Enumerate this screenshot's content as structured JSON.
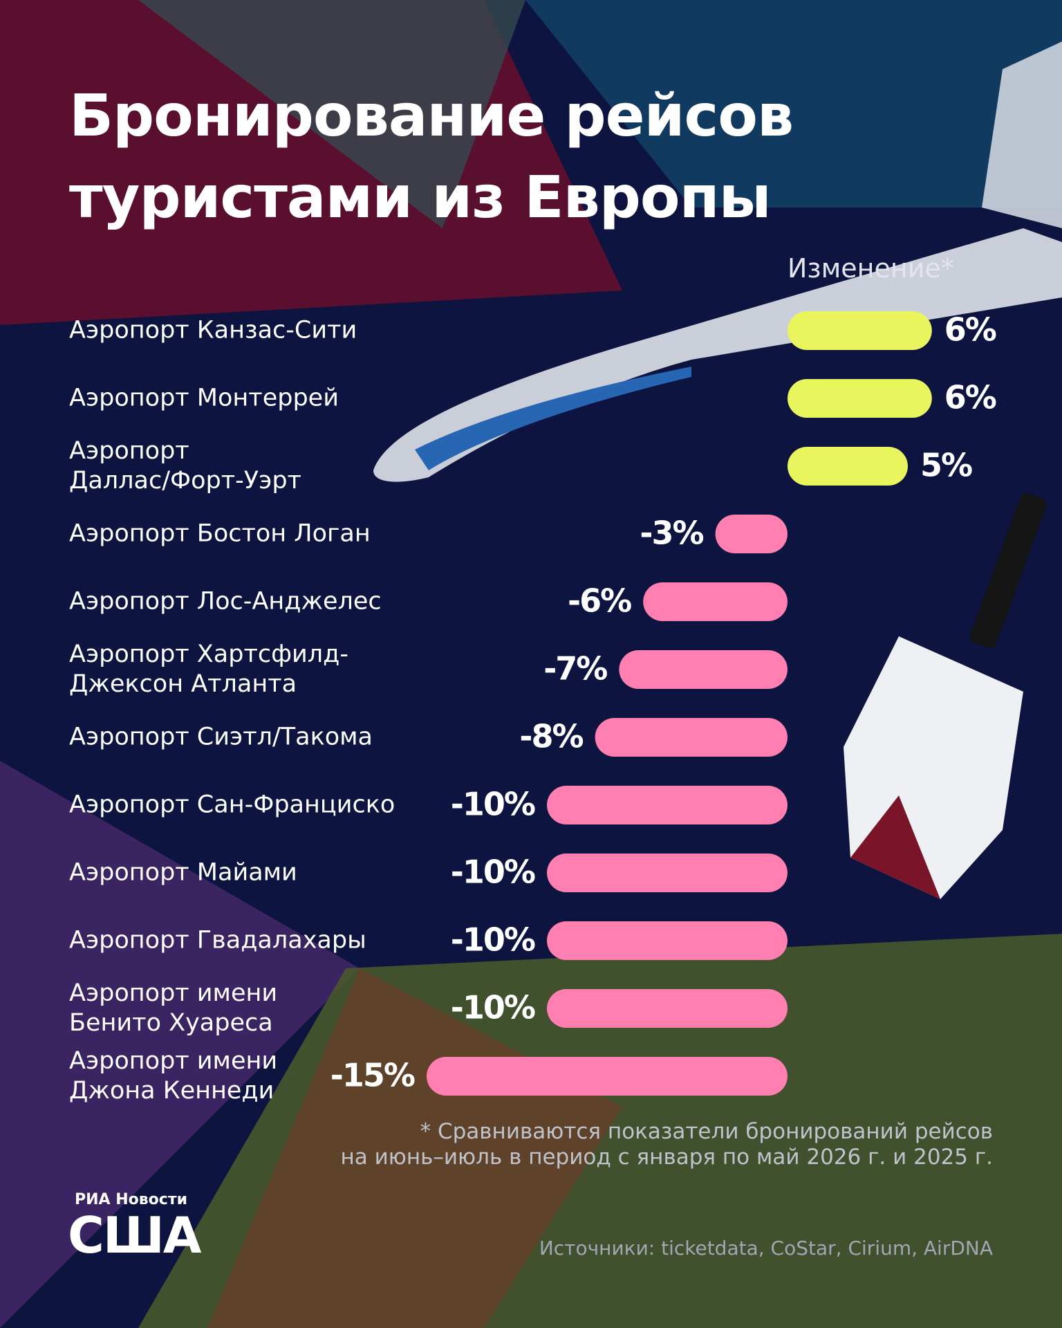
{
  "chart_data": {
    "type": "bar",
    "orientation": "horizontal",
    "title": "Бронирование рейсов\nтуристами из Европы",
    "value_axis_label": "Изменение*",
    "categories": [
      "Аэропорт Канзас-Сити",
      "Аэропорт Монтеррей",
      "Аэропорт\nДаллас/Форт-Уэрт",
      "Аэропорт Бостон Логан",
      "Аэропорт Лос-Анджелес",
      "Аэропорт Хартсфилд-\nДжексон Атланта",
      "Аэропорт Сиэтл/Такома",
      "Аэропорт Сан-Франциско",
      "Аэропорт Майами",
      "Аэропорт Гвадалахары",
      "Аэропорт имени\nБенито Хуареса",
      "Аэропорт имени\nДжона Кеннеди"
    ],
    "values": [
      6,
      6,
      5,
      -3,
      -6,
      -7,
      -8,
      -10,
      -10,
      -10,
      -10,
      -15
    ],
    "value_labels": [
      "6%",
      "6%",
      "5%",
      "-3%",
      "-6%",
      "-7%",
      "-8%",
      "-10%",
      "-10%",
      "-10%",
      "-10%",
      "-15%"
    ],
    "positive_color": "#e9f55c",
    "negative_color": "#ff7fb0",
    "footnote": "* Сравниваются показатели бронирований рейсов\nна июнь–июль в период с января по май 2026 г. и 2025 г.",
    "source": "Источники: ticketdata, CoStar, Cirium, AirDNA",
    "brand": "РИА Новости",
    "brand_title": "США"
  }
}
